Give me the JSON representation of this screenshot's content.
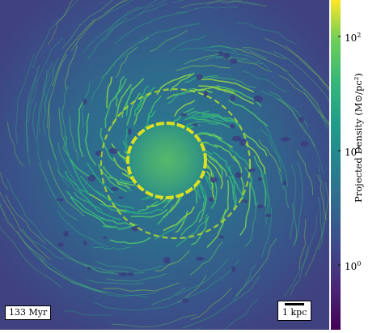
{
  "time_label": "133 Myr",
  "scale_bar_label": "1 kpc",
  "colorbar": {
    "label": "Projected Density",
    "unit": "M⊙/pc²",
    "ticks": [
      {
        "base": "10",
        "exp": "2",
        "value": 100
      },
      {
        "base": "10",
        "exp": "1",
        "value": 10
      },
      {
        "base": "10",
        "exp": "0",
        "value": 1
      }
    ],
    "range": [
      0.3,
      200
    ],
    "scale": "log",
    "colormap": "viridis"
  },
  "colors": {
    "low": "#3b1e5e",
    "mid": "#21918c",
    "high": "#fde725"
  }
}
